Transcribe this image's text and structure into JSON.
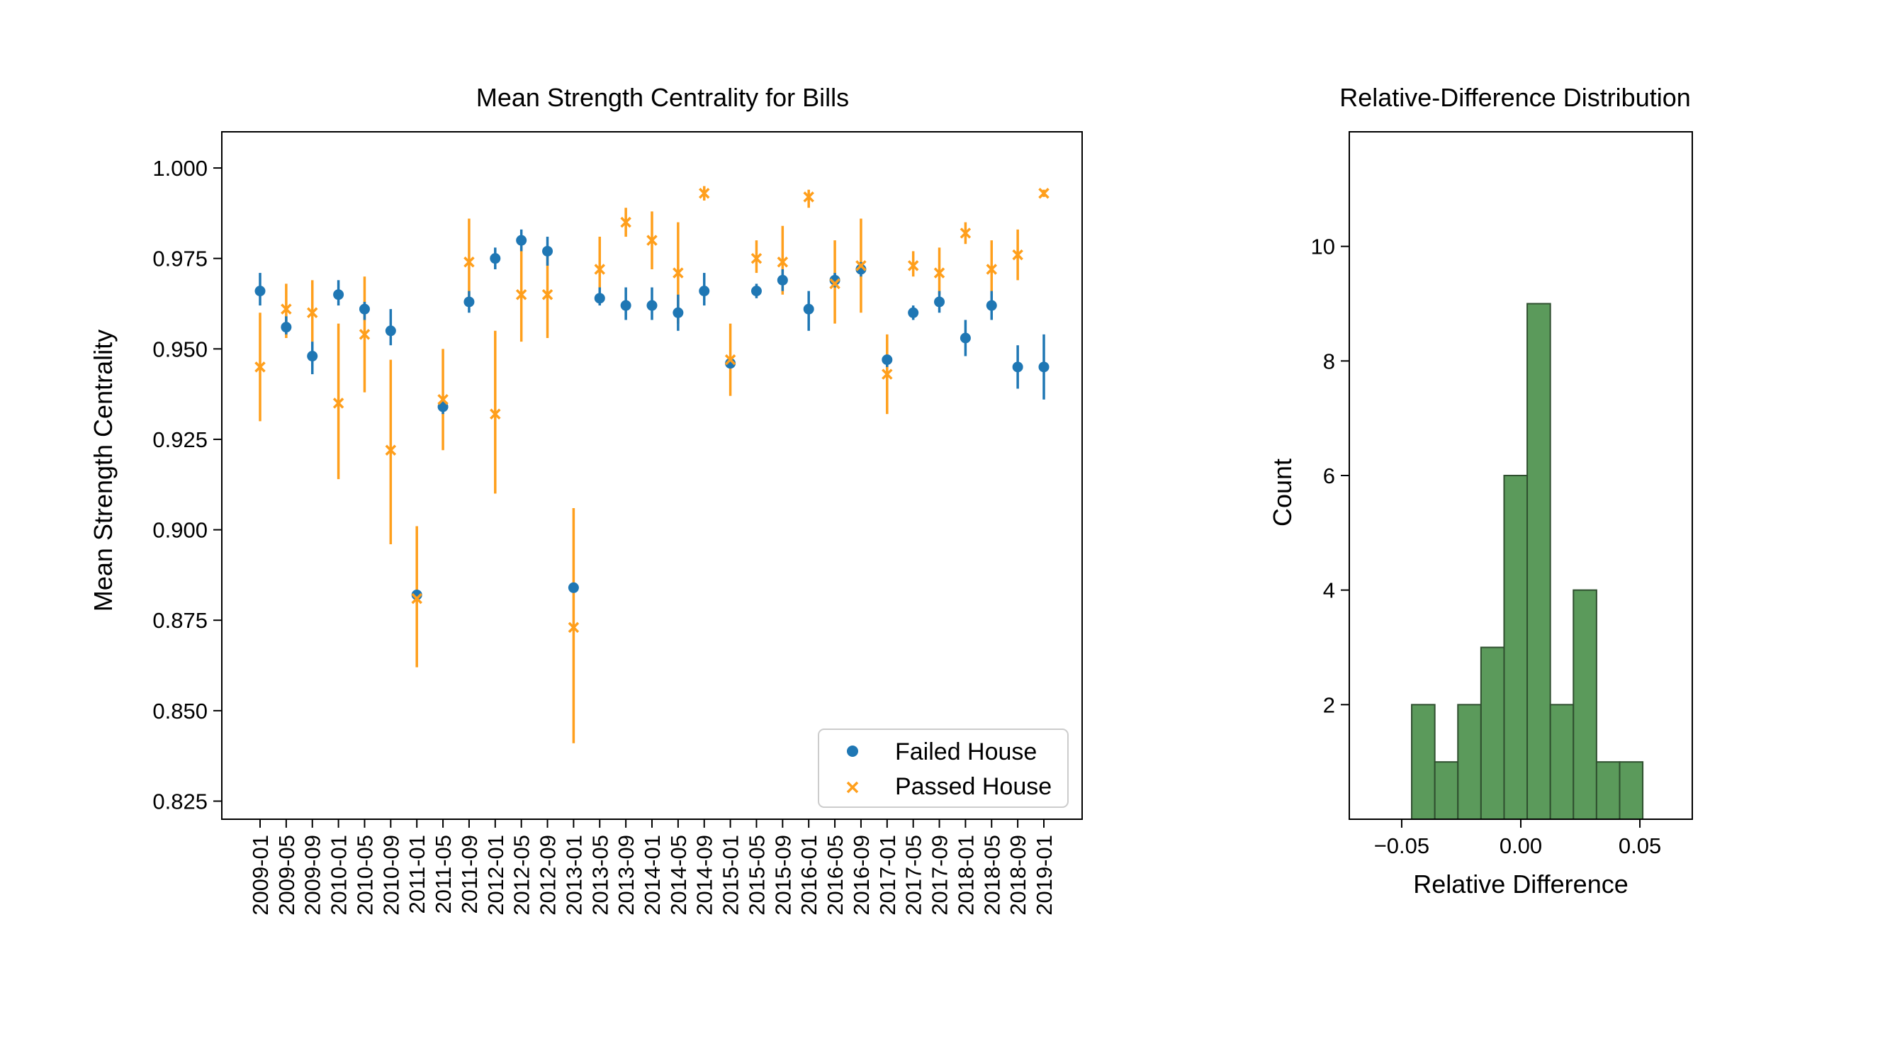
{
  "chart_data": [
    {
      "type": "scatter",
      "title": "Mean Strength Centrality for Bills",
      "xlabel": "",
      "ylabel": "Mean Strength Centrality",
      "ylim": [
        0.82,
        1.01
      ],
      "yticks": [
        "0.825",
        "0.850",
        "0.875",
        "0.900",
        "0.925",
        "0.950",
        "0.975",
        "1.000"
      ],
      "legend_position": "lower-right",
      "grid": false,
      "categories": [
        "2009-01",
        "2009-05",
        "2009-09",
        "2010-01",
        "2010-05",
        "2010-09",
        "2011-01",
        "2011-05",
        "2011-09",
        "2012-01",
        "2012-05",
        "2012-09",
        "2013-01",
        "2013-05",
        "2013-09",
        "2014-01",
        "2014-05",
        "2014-09",
        "2015-01",
        "2015-05",
        "2015-09",
        "2016-01",
        "2016-05",
        "2016-09",
        "2017-01",
        "2017-05",
        "2017-09",
        "2018-01",
        "2018-05",
        "2018-09",
        "2019-01"
      ],
      "series": [
        {
          "name": "Failed House",
          "marker": "circle",
          "color": "#1f77b4",
          "values": [
            0.966,
            0.956,
            0.948,
            0.965,
            0.961,
            0.955,
            0.882,
            0.934,
            0.963,
            0.975,
            0.98,
            0.977,
            0.884,
            0.964,
            0.962,
            0.962,
            0.96,
            0.966,
            0.946,
            0.966,
            0.969,
            0.961,
            0.969,
            0.972,
            0.947,
            0.96,
            0.963,
            0.953,
            0.962,
            0.945,
            0.945
          ],
          "err_low": [
            0.962,
            0.954,
            0.943,
            0.962,
            0.958,
            0.951,
            0.881,
            0.932,
            0.96,
            0.972,
            0.977,
            0.973,
            0.883,
            0.962,
            0.958,
            0.958,
            0.955,
            0.962,
            0.945,
            0.964,
            0.966,
            0.955,
            0.967,
            0.97,
            0.945,
            0.958,
            0.96,
            0.948,
            0.958,
            0.939,
            0.936
          ],
          "err_high": [
            0.971,
            0.959,
            0.952,
            0.969,
            0.963,
            0.961,
            0.883,
            0.936,
            0.966,
            0.978,
            0.983,
            0.981,
            0.885,
            0.967,
            0.967,
            0.967,
            0.965,
            0.971,
            0.947,
            0.968,
            0.972,
            0.966,
            0.971,
            0.974,
            0.948,
            0.962,
            0.966,
            0.958,
            0.966,
            0.951,
            0.954
          ]
        },
        {
          "name": "Passed House",
          "marker": "x",
          "color": "#ff9f1c",
          "values": [
            0.945,
            0.961,
            0.96,
            0.935,
            0.954,
            0.922,
            0.881,
            0.936,
            0.974,
            0.932,
            0.965,
            0.965,
            0.873,
            0.972,
            0.985,
            0.98,
            0.971,
            0.993,
            0.947,
            0.975,
            0.974,
            0.992,
            0.968,
            0.973,
            0.943,
            0.973,
            0.971,
            0.982,
            0.972,
            0.976,
            0.993
          ],
          "err_low": [
            0.93,
            0.953,
            0.952,
            0.914,
            0.938,
            0.896,
            0.862,
            0.922,
            0.962,
            0.91,
            0.952,
            0.953,
            0.841,
            0.963,
            0.981,
            0.972,
            0.957,
            0.991,
            0.937,
            0.971,
            0.965,
            0.989,
            0.957,
            0.96,
            0.932,
            0.97,
            0.965,
            0.979,
            0.964,
            0.969,
            0.992
          ],
          "err_high": [
            0.96,
            0.968,
            0.969,
            0.957,
            0.97,
            0.947,
            0.901,
            0.95,
            0.986,
            0.955,
            0.979,
            0.977,
            0.906,
            0.981,
            0.989,
            0.988,
            0.985,
            0.995,
            0.957,
            0.98,
            0.984,
            0.994,
            0.98,
            0.986,
            0.954,
            0.977,
            0.978,
            0.985,
            0.98,
            0.983,
            0.994
          ]
        }
      ]
    },
    {
      "type": "bar",
      "subtype": "histogram",
      "title": "Relative-Difference Distribution",
      "xlabel": "Relative Difference",
      "ylabel": "Count",
      "xlim": [
        -0.072,
        0.072
      ],
      "ylim": [
        0,
        12
      ],
      "xticks": [
        "−0.05",
        "0.00",
        "0.05"
      ],
      "yticks": [
        "2",
        "4",
        "6",
        "8",
        "10"
      ],
      "color": "#5b9a5b",
      "edge_color": "#2f4f2f",
      "bins": [
        {
          "x0": -0.0458,
          "x1": -0.0361,
          "count": 2
        },
        {
          "x0": -0.0361,
          "x1": -0.0264,
          "count": 1
        },
        {
          "x0": -0.0264,
          "x1": -0.0167,
          "count": 2
        },
        {
          "x0": -0.0167,
          "x1": -0.007,
          "count": 3
        },
        {
          "x0": -0.007,
          "x1": 0.0027,
          "count": 6
        },
        {
          "x0": 0.0027,
          "x1": 0.0124,
          "count": 9
        },
        {
          "x0": 0.0124,
          "x1": 0.0221,
          "count": 2
        },
        {
          "x0": 0.0221,
          "x1": 0.0318,
          "count": 4
        },
        {
          "x0": 0.0318,
          "x1": 0.0415,
          "count": 1
        },
        {
          "x0": 0.0415,
          "x1": 0.0512,
          "count": 1
        }
      ]
    }
  ]
}
